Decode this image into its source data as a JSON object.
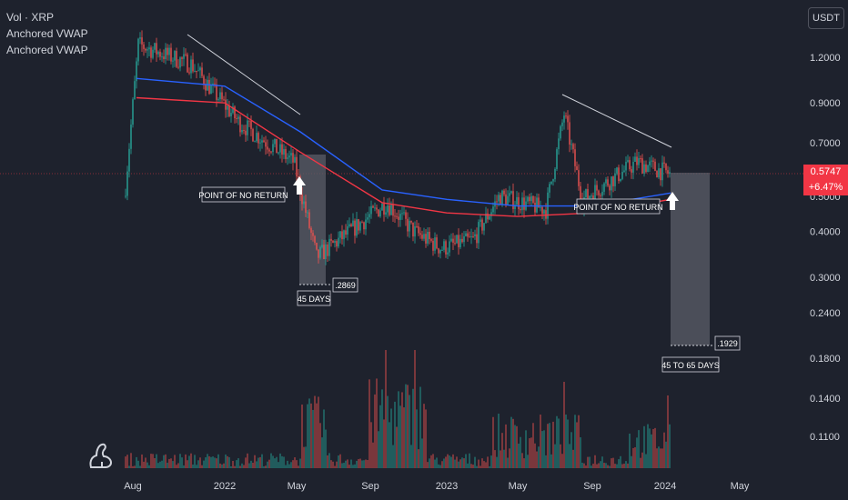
{
  "legend": {
    "symbol": "Vol · XRP",
    "indicator1": "Anchored VWAP",
    "indicator2": "Anchored VWAP"
  },
  "currency_button": "USDT",
  "current_price": "0.5747",
  "current_change": "+6.47%",
  "annotations": {
    "point1": "POINT OF NO RETURN",
    "point2": "POINT OF NO RETURN",
    "days1": "45 DAYS",
    "low1": ".2869",
    "days2": "45 TO 65 DAYS",
    "low2": ".1929"
  },
  "colors": {
    "background": "#1e222d",
    "vwap_blue": "#2962ff",
    "vwap_red": "#f23645",
    "candle_up": "#26a69a",
    "candle_down": "#ef5350",
    "trendline": "#d1d4dc",
    "box": "#4a4d57"
  },
  "chart_data": {
    "type": "candlestick",
    "y_scale": "log",
    "yticks": [
      "1.2000",
      "0.9000",
      "0.7000",
      "0.5000",
      "0.4000",
      "0.3000",
      "0.2400",
      "0.1800",
      "0.1400",
      "0.1100"
    ],
    "xticks": [
      "Aug",
      "2022",
      "May",
      "Sep",
      "2023",
      "May",
      "Sep",
      "2024",
      "May"
    ],
    "series": [
      {
        "name": "Anchored VWAP",
        "color": "blue",
        "points": [
          [
            "Aug",
            1.05
          ],
          [
            "2022",
            1.0
          ],
          [
            "May",
            0.75
          ],
          [
            "Sep",
            0.52
          ],
          [
            "2023",
            0.49
          ],
          [
            "May",
            0.47
          ],
          [
            "Sep",
            0.47
          ],
          [
            "2024",
            0.51
          ]
        ]
      },
      {
        "name": "Anchored VWAP",
        "color": "red",
        "points": [
          [
            "Aug",
            0.93
          ],
          [
            "2022",
            0.9
          ],
          [
            "May",
            0.66
          ],
          [
            "Sep",
            0.48
          ],
          [
            "2023",
            0.45
          ],
          [
            "May",
            0.44
          ],
          [
            "Sep",
            0.45
          ],
          [
            "2024",
            0.49
          ]
        ]
      }
    ],
    "price_path": [
      [
        "Aug",
        0.5
      ],
      [
        "Aug",
        1.3
      ],
      [
        "2022",
        1.15
      ],
      [
        "2022",
        0.8
      ],
      [
        "May",
        0.62
      ],
      [
        "May",
        0.34
      ],
      [
        "Sep",
        0.48
      ],
      [
        "Sep",
        0.4
      ],
      [
        "2023",
        0.36
      ],
      [
        "2023",
        0.38
      ],
      [
        "May",
        0.5
      ],
      [
        "May",
        0.46
      ],
      [
        "Sep",
        0.84
      ],
      [
        "Sep",
        0.49
      ],
      [
        "2024",
        0.62
      ],
      [
        "2024",
        0.5747
      ]
    ],
    "trendlines": [
      {
        "from": [
          "Aug",
          1.35
        ],
        "to": [
          "May",
          0.88
        ]
      },
      {
        "from": [
          "May",
          0.92
        ],
        "to": [
          "2024",
          0.68
        ]
      }
    ],
    "projection_boxes": [
      {
        "label": "45 DAYS",
        "low": 0.2869
      },
      {
        "label": "45 TO 65 DAYS",
        "low": 0.1929
      }
    ]
  }
}
